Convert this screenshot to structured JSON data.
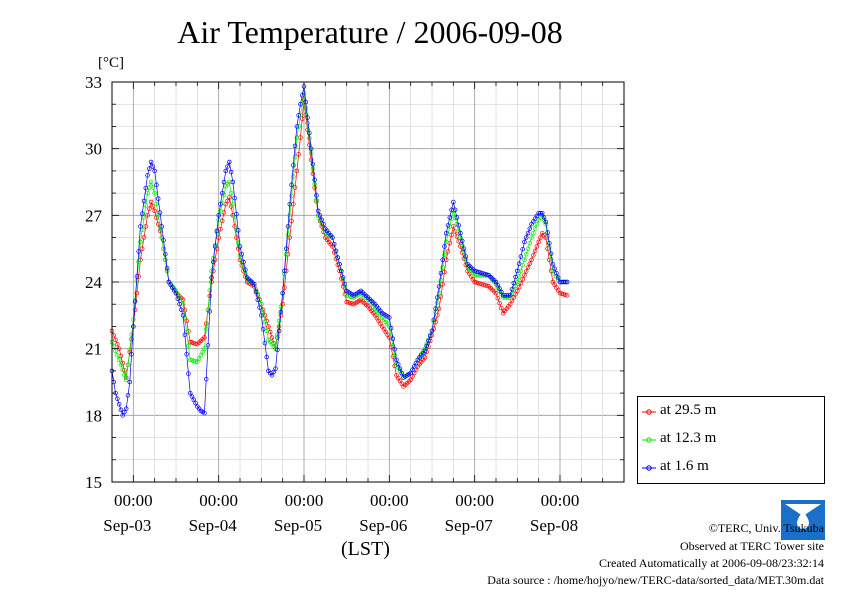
{
  "page": {
    "title": "Air Temperature / 2006-09-08",
    "unit_label": "[°C]",
    "xlabel": "(LST)",
    "credit_line1": "©TERC, Univ. Tsukuba",
    "credit_line2": "Observed at TERC Tower site",
    "created_line": "Created Automatically at 2006-09-08/23:32:14",
    "source_line": "Data source : /home/hojyo/new/TERC-data/sorted_data/MET.30m.dat",
    "logo_text": "TERC",
    "logo_icon": "terc-logo-icon"
  },
  "legend": {
    "items": [
      {
        "label": "at 29.5 m",
        "color": "#ff0000"
      },
      {
        "label": "at 12.3 m",
        "color": "#00ee00"
      },
      {
        "label": "at 1.6 m",
        "color": "#0000ff"
      }
    ]
  },
  "chart_data": {
    "type": "line",
    "title": "Air Temperature / 2006-09-08",
    "ylabel": "[°C]",
    "xlabel": "(LST)",
    "ylim": [
      15,
      33
    ],
    "yticks": [
      15,
      18,
      21,
      24,
      27,
      30,
      33
    ],
    "x_unit": "hours since 2006-09-02 18:00 LST",
    "xlim": [
      0,
      144
    ],
    "xticks": [
      {
        "x": 6,
        "label": "00:00",
        "date": "Sep-03"
      },
      {
        "x": 30,
        "label": "00:00",
        "date": "Sep-04"
      },
      {
        "x": 54,
        "label": "00:00",
        "date": "Sep-05"
      },
      {
        "x": 78,
        "label": "00:00",
        "date": "Sep-06"
      },
      {
        "x": 102,
        "label": "00:00",
        "date": "Sep-07"
      },
      {
        "x": 126,
        "label": "00:00",
        "date": "Sep-08"
      }
    ],
    "grid": true,
    "legend_position": "right-bottom",
    "series": [
      {
        "name": "at 29.5 m",
        "color": "#ff0000",
        "points": [
          [
            0,
            21.8
          ],
          [
            2,
            21.0
          ],
          [
            4,
            19.7
          ],
          [
            6,
            22.0
          ],
          [
            8,
            25.0
          ],
          [
            10,
            27.0
          ],
          [
            11,
            27.6
          ],
          [
            12,
            27.2
          ],
          [
            14,
            26.0
          ],
          [
            16,
            24.0
          ],
          [
            18,
            23.5
          ],
          [
            20,
            23.2
          ],
          [
            22,
            21.3
          ],
          [
            24,
            21.2
          ],
          [
            26,
            21.5
          ],
          [
            28,
            24.0
          ],
          [
            30,
            26.0
          ],
          [
            32,
            27.5
          ],
          [
            33,
            27.8
          ],
          [
            34,
            27.0
          ],
          [
            36,
            25.0
          ],
          [
            38,
            24.0
          ],
          [
            40,
            23.8
          ],
          [
            42,
            23.0
          ],
          [
            44,
            22.0
          ],
          [
            46,
            21.0
          ],
          [
            48,
            23.0
          ],
          [
            50,
            26.0
          ],
          [
            52,
            29.0
          ],
          [
            53,
            30.5
          ],
          [
            54,
            32.2
          ],
          [
            56,
            29.5
          ],
          [
            58,
            27.0
          ],
          [
            60,
            26.0
          ],
          [
            62,
            25.6
          ],
          [
            64,
            24.5
          ],
          [
            66,
            23.1
          ],
          [
            68,
            23.0
          ],
          [
            70,
            23.2
          ],
          [
            72,
            22.9
          ],
          [
            74,
            22.5
          ],
          [
            76,
            22.0
          ],
          [
            78,
            21.5
          ],
          [
            80,
            19.8
          ],
          [
            82,
            19.3
          ],
          [
            84,
            19.6
          ],
          [
            86,
            20.2
          ],
          [
            88,
            20.6
          ],
          [
            90,
            21.6
          ],
          [
            92,
            22.8
          ],
          [
            94,
            25.0
          ],
          [
            96,
            26.5
          ],
          [
            98,
            25.6
          ],
          [
            100,
            24.5
          ],
          [
            102,
            24.0
          ],
          [
            104,
            23.9
          ],
          [
            106,
            23.8
          ],
          [
            108,
            23.5
          ],
          [
            110,
            22.6
          ],
          [
            112,
            23.0
          ],
          [
            114,
            23.6
          ],
          [
            116,
            24.3
          ],
          [
            118,
            25.0
          ],
          [
            120,
            25.8
          ],
          [
            121,
            26.2
          ],
          [
            122,
            26.0
          ],
          [
            124,
            24.0
          ],
          [
            126,
            23.5
          ],
          [
            128,
            23.4
          ]
        ]
      },
      {
        "name": "at 12.3 m",
        "color": "#00ee00",
        "points": [
          [
            0,
            21.3
          ],
          [
            2,
            20.5
          ],
          [
            4,
            19.6
          ],
          [
            6,
            22.3
          ],
          [
            8,
            25.8
          ],
          [
            10,
            28.0
          ],
          [
            11,
            28.5
          ],
          [
            12,
            28.0
          ],
          [
            14,
            26.0
          ],
          [
            16,
            24.0
          ],
          [
            18,
            23.6
          ],
          [
            20,
            23.0
          ],
          [
            22,
            20.5
          ],
          [
            24,
            20.4
          ],
          [
            26,
            21.0
          ],
          [
            28,
            24.5
          ],
          [
            30,
            26.8
          ],
          [
            32,
            28.3
          ],
          [
            33,
            28.5
          ],
          [
            34,
            27.5
          ],
          [
            36,
            25.2
          ],
          [
            38,
            24.1
          ],
          [
            40,
            23.9
          ],
          [
            42,
            23.0
          ],
          [
            44,
            21.4
          ],
          [
            46,
            21.0
          ],
          [
            48,
            23.5
          ],
          [
            50,
            27.0
          ],
          [
            52,
            30.5
          ],
          [
            53,
            31.5
          ],
          [
            54,
            32.5
          ],
          [
            56,
            29.8
          ],
          [
            58,
            27.0
          ],
          [
            60,
            26.2
          ],
          [
            62,
            26.0
          ],
          [
            64,
            24.8
          ],
          [
            66,
            23.4
          ],
          [
            68,
            23.3
          ],
          [
            70,
            23.5
          ],
          [
            72,
            23.2
          ],
          [
            74,
            22.8
          ],
          [
            76,
            22.4
          ],
          [
            78,
            22.0
          ],
          [
            80,
            20.3
          ],
          [
            82,
            19.7
          ],
          [
            84,
            19.9
          ],
          [
            86,
            20.5
          ],
          [
            88,
            21.0
          ],
          [
            90,
            21.8
          ],
          [
            92,
            23.5
          ],
          [
            94,
            25.8
          ],
          [
            96,
            27.2
          ],
          [
            98,
            26.0
          ],
          [
            100,
            24.7
          ],
          [
            102,
            24.3
          ],
          [
            104,
            24.3
          ],
          [
            106,
            24.3
          ],
          [
            108,
            23.9
          ],
          [
            110,
            23.3
          ],
          [
            112,
            23.3
          ],
          [
            114,
            24.0
          ],
          [
            116,
            25.0
          ],
          [
            118,
            26.0
          ],
          [
            120,
            26.8
          ],
          [
            121,
            27.0
          ],
          [
            122,
            26.6
          ],
          [
            124,
            24.5
          ],
          [
            126,
            24.0
          ],
          [
            128,
            24.0
          ]
        ]
      },
      {
        "name": "at 1.6 m",
        "color": "#0000ff",
        "points": [
          [
            0,
            20.0
          ],
          [
            1,
            19.0
          ],
          [
            2,
            18.5
          ],
          [
            3,
            18.0
          ],
          [
            4,
            18.3
          ],
          [
            5,
            19.5
          ],
          [
            6,
            22.0
          ],
          [
            8,
            26.5
          ],
          [
            10,
            28.8
          ],
          [
            11,
            29.4
          ],
          [
            12,
            29.0
          ],
          [
            14,
            26.5
          ],
          [
            16,
            24.0
          ],
          [
            18,
            23.5
          ],
          [
            20,
            22.5
          ],
          [
            22,
            19.0
          ],
          [
            24,
            18.4
          ],
          [
            25,
            18.2
          ],
          [
            26,
            18.1
          ],
          [
            28,
            24.2
          ],
          [
            30,
            27.0
          ],
          [
            32,
            29.0
          ],
          [
            33,
            29.4
          ],
          [
            34,
            28.5
          ],
          [
            36,
            25.6
          ],
          [
            38,
            24.2
          ],
          [
            40,
            23.9
          ],
          [
            42,
            22.5
          ],
          [
            44,
            20.0
          ],
          [
            45,
            19.8
          ],
          [
            46,
            20.1
          ],
          [
            48,
            23.5
          ],
          [
            50,
            27.5
          ],
          [
            52,
            31.0
          ],
          [
            53,
            32.0
          ],
          [
            54,
            32.8
          ],
          [
            56,
            30.0
          ],
          [
            58,
            27.2
          ],
          [
            60,
            26.4
          ],
          [
            62,
            26.0
          ],
          [
            64,
            24.8
          ],
          [
            66,
            23.6
          ],
          [
            68,
            23.4
          ],
          [
            70,
            23.6
          ],
          [
            72,
            23.3
          ],
          [
            74,
            23.0
          ],
          [
            76,
            22.6
          ],
          [
            78,
            22.4
          ],
          [
            80,
            20.5
          ],
          [
            82,
            19.7
          ],
          [
            84,
            19.9
          ],
          [
            86,
            20.5
          ],
          [
            88,
            20.9
          ],
          [
            90,
            21.8
          ],
          [
            92,
            23.8
          ],
          [
            94,
            26.2
          ],
          [
            96,
            27.6
          ],
          [
            98,
            26.2
          ],
          [
            100,
            24.8
          ],
          [
            102,
            24.5
          ],
          [
            104,
            24.4
          ],
          [
            106,
            24.3
          ],
          [
            108,
            24.0
          ],
          [
            110,
            23.4
          ],
          [
            112,
            23.4
          ],
          [
            114,
            24.5
          ],
          [
            116,
            25.8
          ],
          [
            118,
            26.6
          ],
          [
            120,
            27.1
          ],
          [
            121,
            27.1
          ],
          [
            122,
            26.7
          ],
          [
            124,
            24.8
          ],
          [
            126,
            24.0
          ],
          [
            128,
            24.0
          ]
        ]
      }
    ]
  }
}
